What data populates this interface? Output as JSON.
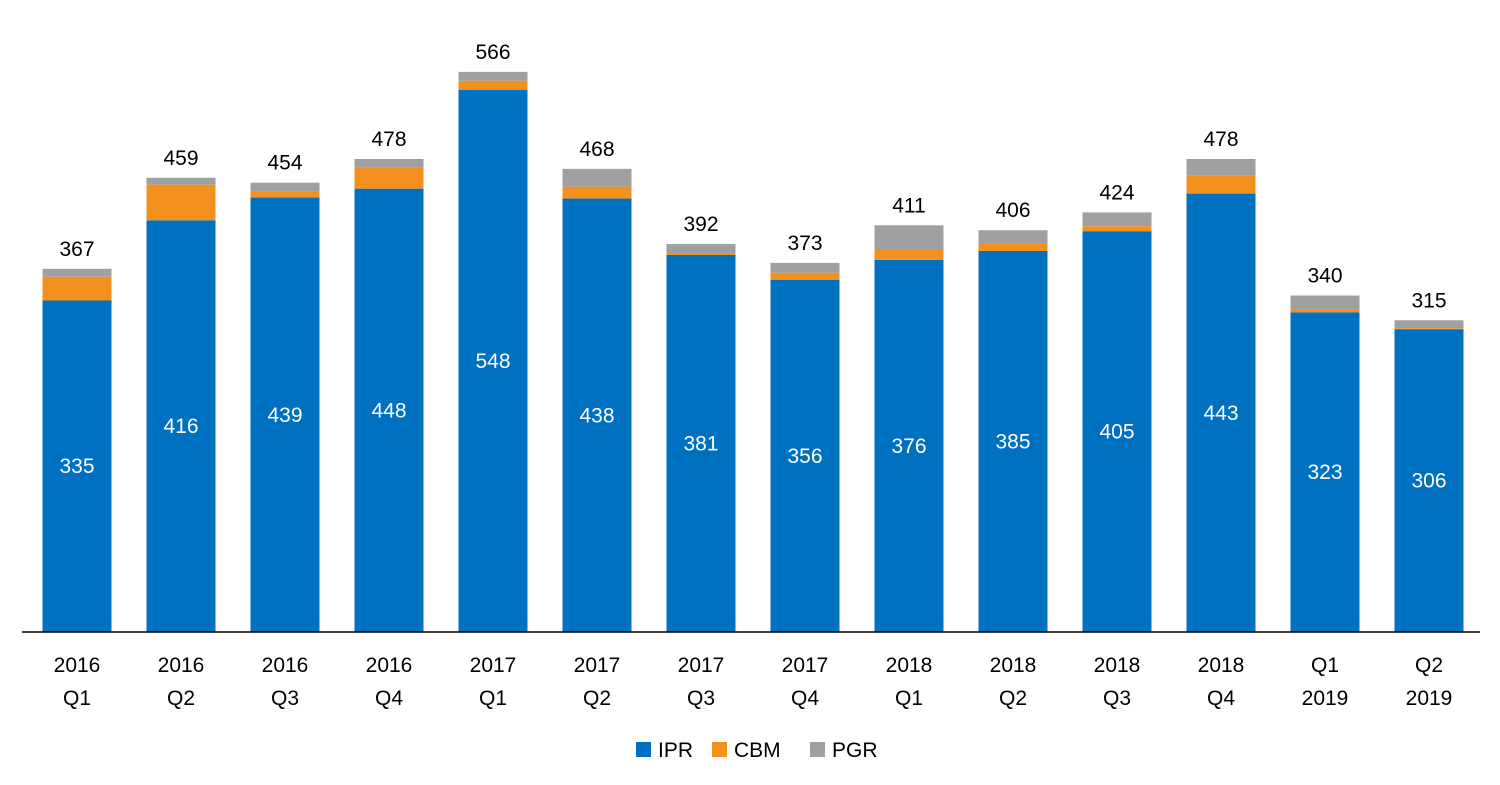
{
  "chart_data": {
    "type": "bar",
    "stacked": true,
    "title": "",
    "xlabel": "",
    "ylabel": "",
    "ylim": [
      0,
      600
    ],
    "grid": false,
    "legend_position": "bottom-center",
    "categories": [
      [
        "2016",
        "Q1"
      ],
      [
        "2016",
        "Q2"
      ],
      [
        "2016",
        "Q3"
      ],
      [
        "2016",
        "Q4"
      ],
      [
        "2017",
        "Q1"
      ],
      [
        "2017",
        "Q2"
      ],
      [
        "2017",
        "Q3"
      ],
      [
        "2017",
        "Q4"
      ],
      [
        "2018",
        "Q1"
      ],
      [
        "2018",
        "Q2"
      ],
      [
        "2018",
        "Q3"
      ],
      [
        "2018",
        "Q4"
      ],
      [
        "Q1",
        "2019"
      ],
      [
        "Q2",
        "2019"
      ]
    ],
    "series": [
      {
        "name": "IPR",
        "color": "#0070C0",
        "values": [
          335,
          416,
          439,
          448,
          548,
          438,
          381,
          356,
          376,
          385,
          405,
          443,
          323,
          306
        ]
      },
      {
        "name": "CBM",
        "color": "#F4901E",
        "values": [
          24,
          36,
          6,
          21,
          9,
          12,
          1,
          7,
          11,
          8,
          5,
          18,
          3,
          1
        ]
      },
      {
        "name": "PGR",
        "color": "#A0A0A0",
        "values": [
          8,
          7,
          9,
          9,
          9,
          18,
          10,
          10,
          24,
          13,
          14,
          17,
          14,
          8
        ]
      }
    ],
    "totals": [
      "367",
      "459",
      "454",
      "478",
      "566",
      "468",
      "392",
      "373",
      "411",
      "406",
      "424",
      "478",
      "340",
      "315"
    ],
    "ipr_labels": [
      "335",
      "416",
      "439",
      "448",
      "548",
      "438",
      "381",
      "356",
      "376",
      "385",
      "405",
      "443",
      "323",
      "306"
    ]
  }
}
